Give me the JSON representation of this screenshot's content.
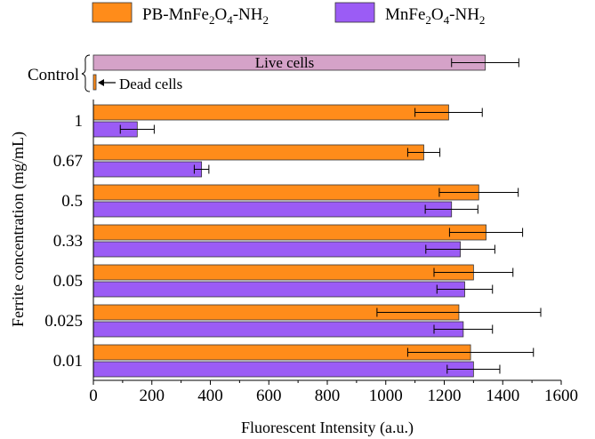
{
  "chart_data": {
    "type": "bar",
    "orientation": "horizontal",
    "xlabel": "Fluorescent Intensity (a.u.)",
    "ylabel": "Ferrite concentration (mg/mL)",
    "xlim": [
      0,
      1600
    ],
    "xticks": [
      0,
      200,
      400,
      600,
      800,
      1000,
      1200,
      1400,
      1600
    ],
    "categories": [
      "1",
      "0.67",
      "0.5",
      "0.33",
      "0.05",
      "0.025",
      "0.01"
    ],
    "series": [
      {
        "name": "PB-MnFe2O4-NH2",
        "color": "#ff8c1a",
        "values": [
          1215,
          1130,
          1318,
          1343,
          1300,
          1250,
          1290
        ],
        "errors": [
          115,
          55,
          135,
          125,
          135,
          280,
          215
        ]
      },
      {
        "name": "MnFe2O4-NH2",
        "color": "#9b5cf5",
        "values": [
          150,
          370,
          1225,
          1255,
          1270,
          1265,
          1300
        ],
        "errors": [
          58,
          25,
          90,
          118,
          95,
          100,
          90
        ]
      }
    ],
    "control": {
      "label": "Control",
      "live": {
        "label": "Live cells",
        "value": 1340,
        "error": 115,
        "color": "#d5a2c8"
      },
      "dead": {
        "label": "Dead cells",
        "value": 8,
        "color": "#ff8c1a"
      }
    },
    "legend": {
      "position": "top",
      "entries": [
        {
          "text": "PB-MnFe",
          "sub1": "2",
          "mid": "O",
          "sub2": "4",
          "tail": "-NH",
          "sub3": "2"
        },
        {
          "text": "MnFe",
          "sub1": "2",
          "mid": "O",
          "sub2": "4",
          "tail": "-NH",
          "sub3": "2"
        }
      ]
    }
  }
}
